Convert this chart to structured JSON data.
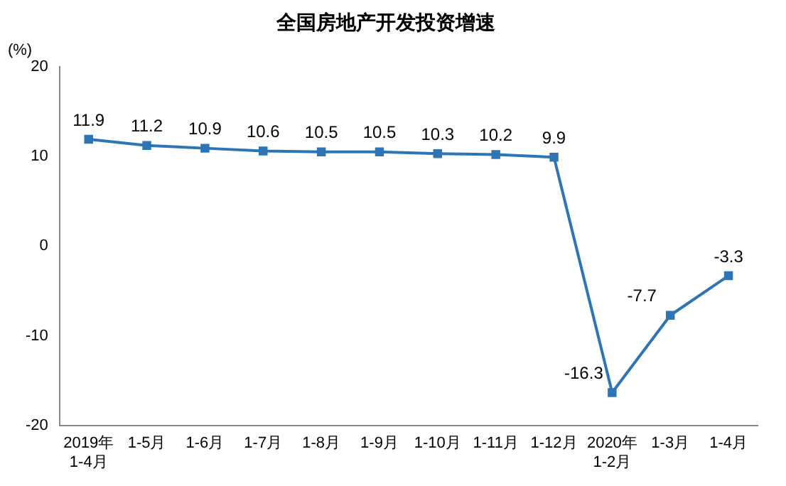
{
  "chart_data": {
    "type": "line",
    "title": "全国房地产开发投资增速",
    "ylabel": "(%)",
    "categories": [
      "2019年\n1-4月",
      "1-5月",
      "1-6月",
      "1-7月",
      "1-8月",
      "1-9月",
      "1-10月",
      "1-11月",
      "1-12月",
      "2020年\n1-2月",
      "1-3月",
      "1-4月"
    ],
    "series": [
      {
        "color": "#2e75b6",
        "values": [
          11.9,
          11.2,
          10.9,
          10.6,
          10.5,
          10.5,
          10.3,
          10.2,
          9.9,
          -16.3,
          -7.7,
          -3.3
        ]
      }
    ],
    "ylim": [
      -20,
      20
    ],
    "yticks": [
      -20,
      -10,
      0,
      10,
      20
    ],
    "grid": false,
    "legend": false,
    "marker": "square",
    "line_style": "solid",
    "data_labels": true
  }
}
